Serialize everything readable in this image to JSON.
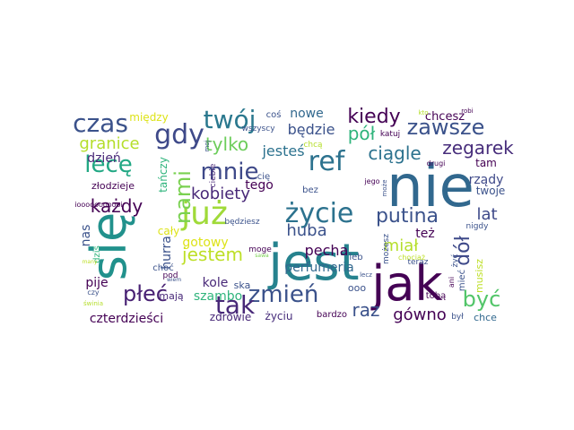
{
  "words": [
    {
      "text": "nie",
      "color": "#31688e"
    },
    {
      "text": "jest",
      "color": "#26828e"
    },
    {
      "text": "się",
      "color": "#21918c"
    },
    {
      "text": "jak",
      "color": "#440154"
    },
    {
      "text": "już",
      "color": "#a0da39"
    },
    {
      "text": "życie",
      "color": "#2c728e"
    },
    {
      "text": "zmień",
      "color": "#3b528b"
    },
    {
      "text": "tak",
      "color": "#482878"
    },
    {
      "text": "gdy",
      "color": "#3e4989"
    },
    {
      "text": "czas",
      "color": "#3b528b"
    },
    {
      "text": "twój",
      "color": "#2a788e"
    },
    {
      "text": "ref",
      "color": "#2c728e"
    },
    {
      "text": "kiedy",
      "color": "#440154"
    },
    {
      "text": "zawsze",
      "color": "#3b528b"
    },
    {
      "text": "mnie",
      "color": "#3e4989"
    },
    {
      "text": "nami",
      "color": "#7ad151"
    },
    {
      "text": "lecę",
      "color": "#22a884"
    },
    {
      "text": "pół",
      "color": "#2fb47c"
    },
    {
      "text": "zegarek",
      "color": "#472d7b"
    },
    {
      "text": "ciągle",
      "color": "#2c728e"
    },
    {
      "text": "granice",
      "color": "#b5de2b"
    },
    {
      "text": "dół",
      "color": "#3e4989"
    },
    {
      "text": "być",
      "color": "#52c569"
    },
    {
      "text": "putina",
      "color": "#3b528b"
    },
    {
      "text": "jestem",
      "color": "#bddf26"
    },
    {
      "text": "płeć",
      "color": "#482173"
    },
    {
      "text": "każdy",
      "color": "#440154"
    },
    {
      "text": "raz",
      "color": "#3b528b"
    },
    {
      "text": "tylko",
      "color": "#6ccd5a"
    },
    {
      "text": "kobiety",
      "color": "#482878"
    },
    {
      "text": "huba",
      "color": "#3b528b"
    },
    {
      "text": "lat",
      "color": "#3e4989"
    },
    {
      "text": "miał",
      "color": "#b5de2b"
    },
    {
      "text": "gówno",
      "color": "#440154"
    },
    {
      "text": "będzie",
      "color": "#3b528b"
    },
    {
      "text": "jesteś",
      "color": "#2c728e"
    },
    {
      "text": "pecha",
      "color": "#440154"
    },
    {
      "text": "perfumeria",
      "color": "#31688e"
    },
    {
      "text": "czterdzieści",
      "color": "#440154"
    },
    {
      "text": "szambo",
      "color": "#2fb47c"
    },
    {
      "text": "gotowy",
      "color": "#dde318"
    },
    {
      "text": "nowe",
      "color": "#31688e"
    },
    {
      "text": "też",
      "color": "#440154"
    },
    {
      "text": "dzień",
      "color": "#482878"
    },
    {
      "text": "rządy",
      "color": "#3e4989"
    },
    {
      "text": "nas",
      "color": "#3b528b"
    },
    {
      "text": "tego",
      "color": "#440154"
    },
    {
      "text": "między",
      "color": "#dde318"
    },
    {
      "text": "chcesz",
      "color": "#440154"
    },
    {
      "text": "hurra",
      "color": "#3b528b"
    },
    {
      "text": "kole",
      "color": "#482878"
    },
    {
      "text": "cały",
      "color": "#dde318"
    },
    {
      "text": "pije",
      "color": "#440154"
    },
    {
      "text": "twoje",
      "color": "#3b528b"
    },
    {
      "text": "tam",
      "color": "#440154"
    },
    {
      "text": "mają",
      "color": "#482878"
    },
    {
      "text": "chce",
      "color": "#31688e"
    },
    {
      "text": "zdrowie",
      "color": "#482878"
    },
    {
      "text": "życiu",
      "color": "#472d7b"
    },
    {
      "text": "tańczy",
      "color": "#2fb47c"
    },
    {
      "text": "ooo",
      "color": "#3b528b"
    },
    {
      "text": "złodzieje",
      "color": "#440154"
    },
    {
      "text": "musisz",
      "color": "#bddf26"
    },
    {
      "text": "ska",
      "color": "#3b528b"
    },
    {
      "text": "bardzo",
      "color": "#440154"
    },
    {
      "text": "tobą",
      "color": "#440154"
    },
    {
      "text": "bez",
      "color": "#3b528b"
    },
    {
      "text": "coś",
      "color": "#3b528b"
    },
    {
      "text": "leb",
      "color": "#3b528b"
    },
    {
      "text": "choć",
      "color": "#3b528b"
    },
    {
      "text": "cię",
      "color": "#3b528b"
    },
    {
      "text": "ciebie",
      "color": "#482878"
    },
    {
      "text": "katuj",
      "color": "#440154"
    },
    {
      "text": "dziś",
      "color": "#2fb47c"
    },
    {
      "text": "mieć",
      "color": "#3b528b"
    },
    {
      "text": "będziesz",
      "color": "#3b528b"
    },
    {
      "text": "wszyscy",
      "color": "#3b528b"
    },
    {
      "text": "pod",
      "color": "#440154"
    },
    {
      "text": "żyć",
      "color": "#3b528b"
    },
    {
      "text": "możesz",
      "color": "#3b528b"
    },
    {
      "text": "był",
      "color": "#3b528b"
    },
    {
      "text": "moge",
      "color": "#440154"
    },
    {
      "text": "chcą",
      "color": "#b5de2b"
    },
    {
      "text": "nigdy",
      "color": "#3b528b"
    },
    {
      "text": "teraz",
      "color": "#3b528b"
    },
    {
      "text": "chociaż",
      "color": "#bddf26"
    },
    {
      "text": "czy",
      "color": "#3b528b"
    },
    {
      "text": "jego",
      "color": "#440154"
    },
    {
      "text": "może",
      "color": "#3b528b"
    },
    {
      "text": "drugi",
      "color": "#440154"
    },
    {
      "text": "ani",
      "color": "#440154"
    },
    {
      "text": "robi",
      "color": "#440154"
    },
    {
      "text": "moj",
      "color": "#3b528b"
    },
    {
      "text": "lecz",
      "color": "#3b528b"
    },
    {
      "text": "iooooooooooi",
      "color": "#440154"
    },
    {
      "text": "kto",
      "color": "#b5de2b"
    },
    {
      "text": "świnia",
      "color": "#b5de2b"
    },
    {
      "text": "wiem",
      "color": "#3b528b"
    },
    {
      "text": "many",
      "color": "#bddf26"
    },
    {
      "text": "sawa",
      "color": "#7ad151"
    }
  ]
}
